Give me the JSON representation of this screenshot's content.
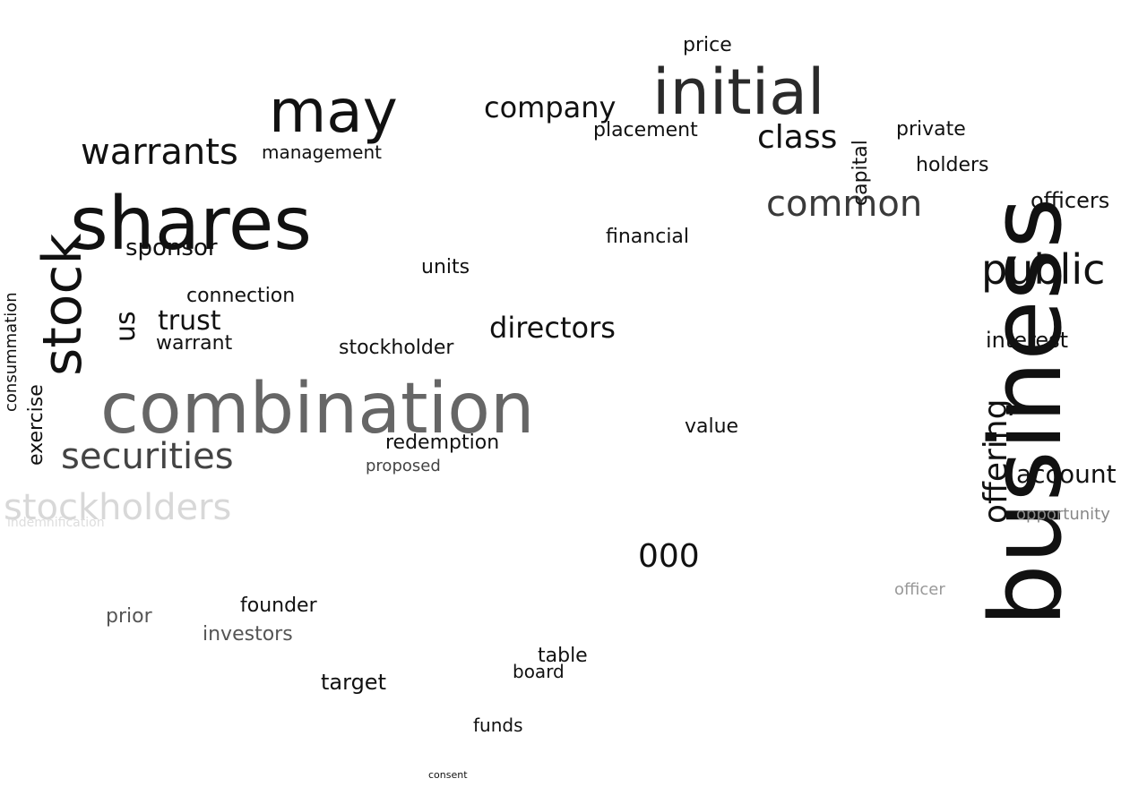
{
  "wordcloud": {
    "words": [
      {
        "text": "combination",
        "color": "#666666"
      },
      {
        "text": "business",
        "color": "#111111"
      },
      {
        "text": "shares",
        "color": "#111111"
      },
      {
        "text": "initial",
        "color": "#2a2a2a"
      },
      {
        "text": "stock",
        "color": "#111111"
      },
      {
        "text": "may",
        "color": "#111111"
      },
      {
        "text": "warrants",
        "color": "#111111"
      },
      {
        "text": "securities",
        "color": "#444444"
      },
      {
        "text": "common",
        "color": "#3a3a3a"
      },
      {
        "text": "public",
        "color": "#111111"
      },
      {
        "text": "stockholders",
        "color": "#d8d8d8"
      },
      {
        "text": "offering",
        "color": "#111111"
      },
      {
        "text": "company",
        "color": "#111111"
      },
      {
        "text": "class",
        "color": "#111111"
      },
      {
        "text": "directors",
        "color": "#111111"
      },
      {
        "text": "trust",
        "color": "#111111"
      },
      {
        "text": "sponsor",
        "color": "#111111"
      },
      {
        "text": "us",
        "color": "#111111"
      },
      {
        "text": "000",
        "color": "#111111"
      },
      {
        "text": "account",
        "color": "#111111"
      },
      {
        "text": "redemption",
        "color": "#111111"
      },
      {
        "text": "target",
        "color": "#111111"
      },
      {
        "text": "financial",
        "color": "#111111"
      },
      {
        "text": "warrant",
        "color": "#111111"
      },
      {
        "text": "connection",
        "color": "#111111"
      },
      {
        "text": "management",
        "color": "#111111"
      },
      {
        "text": "capital",
        "color": "#111111"
      },
      {
        "text": "officers",
        "color": "#111111"
      },
      {
        "text": "interest",
        "color": "#111111"
      },
      {
        "text": "units",
        "color": "#111111"
      },
      {
        "text": "stockholder",
        "color": "#111111"
      },
      {
        "text": "table",
        "color": "#111111"
      },
      {
        "text": "funds",
        "color": "#111111"
      },
      {
        "text": "board",
        "color": "#111111"
      },
      {
        "text": "value",
        "color": "#111111"
      },
      {
        "text": "placement",
        "color": "#111111"
      },
      {
        "text": "price",
        "color": "#111111"
      },
      {
        "text": "holders",
        "color": "#111111"
      },
      {
        "text": "exercise",
        "color": "#111111"
      },
      {
        "text": "consummation",
        "color": "#111111"
      },
      {
        "text": "private",
        "color": "#111111"
      },
      {
        "text": "prior",
        "color": "#555555"
      },
      {
        "text": "investors",
        "color": "#555555"
      },
      {
        "text": "founder",
        "color": "#111111"
      },
      {
        "text": "proposed",
        "color": "#444444"
      },
      {
        "text": "opportunity",
        "color": "#888888"
      },
      {
        "text": "officer",
        "color": "#999999"
      },
      {
        "text": "indemnification",
        "color": "#dddddd"
      },
      {
        "text": "consent",
        "color": "#111111"
      }
    ]
  }
}
